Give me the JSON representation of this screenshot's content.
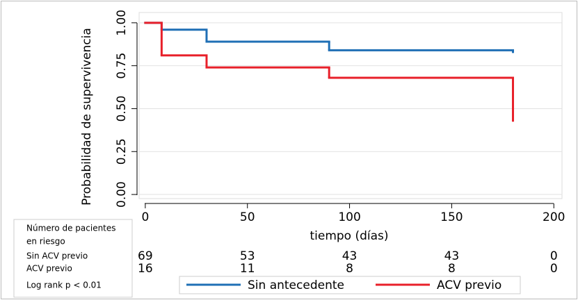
{
  "chart_data": {
    "type": "step",
    "y_label": "Probabilidad de supervivencia",
    "x_label": "tiempo (días)",
    "x": [
      0,
      8,
      30,
      90,
      180
    ],
    "series": [
      {
        "name": "Sin antecedente",
        "color": "#1f6fb5",
        "values": [
          1.0,
          0.96,
          0.89,
          0.84,
          0.83
        ]
      },
      {
        "name": "ACV previo",
        "color": "#e8202a",
        "values": [
          1.0,
          0.81,
          0.74,
          0.68,
          0.43
        ]
      }
    ],
    "xlim": [
      -2,
      204
    ],
    "xticks": [
      0,
      50,
      100,
      150,
      200
    ],
    "ylim": [
      -0.02,
      1.06
    ],
    "yticks": [
      {
        "value": 0,
        "label": "0.00"
      },
      {
        "value": 0.25,
        "label": "0.25"
      },
      {
        "value": 0.5,
        "label": "0.50"
      },
      {
        "value": 0.75,
        "label": "0.75"
      },
      {
        "value": 1,
        "label": "1.00"
      }
    ],
    "grid": true,
    "legend": "bottom",
    "risk_table": {
      "title_lines": [
        "Número de pacientes",
        "en riesgo"
      ],
      "rows": [
        {
          "label": "Sin ACV previo",
          "values": [
            69,
            53,
            43,
            43,
            0
          ]
        },
        {
          "label": "ACV previo",
          "values": [
            16,
            11,
            8,
            8,
            0
          ]
        }
      ]
    },
    "note": "Log rank p < 0.01"
  }
}
